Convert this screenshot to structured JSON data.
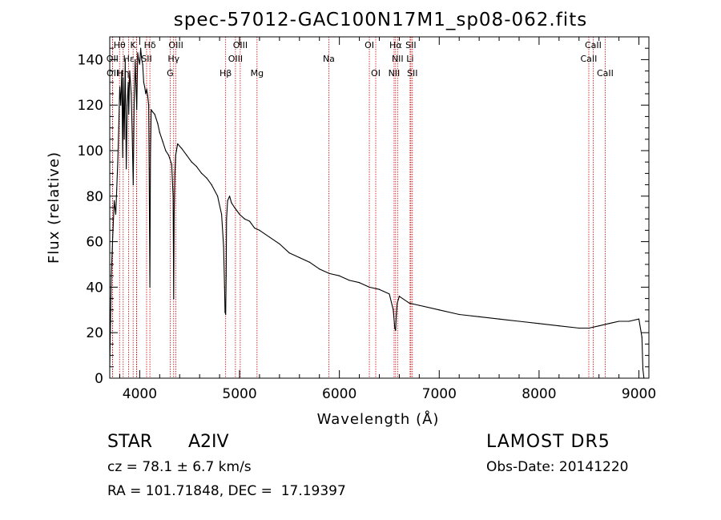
{
  "chart_data": {
    "type": "line",
    "title": "spec-57012-GAC100N17M1_sp08-062.fits",
    "xlabel": "Wavelength (Å)",
    "ylabel": "Flux (relative)",
    "xlim": [
      3700,
      9100
    ],
    "ylim": [
      0,
      150
    ],
    "xticks": [
      4000,
      5000,
      6000,
      7000,
      8000,
      9000
    ],
    "yticks": [
      0,
      20,
      40,
      60,
      80,
      100,
      120,
      140
    ],
    "grid": false,
    "series": [
      {
        "x": [
          3700,
          3715,
          3730,
          3745,
          3760,
          3770,
          3780,
          3790,
          3800,
          3810,
          3820,
          3830,
          3835,
          3845,
          3855,
          3865,
          3875,
          3885,
          3890,
          3900,
          3915,
          3925,
          3935,
          3945,
          3955,
          3960,
          3970,
          3980,
          3990,
          4000,
          4010,
          4020,
          4030,
          4040,
          4050,
          4060,
          4070,
          4080,
          4090,
          4095,
          4102,
          4108,
          4115,
          4130,
          4150,
          4180,
          4200,
          4230,
          4260,
          4290,
          4320,
          4335,
          4340,
          4345,
          4352,
          4360,
          4380,
          4420,
          4470,
          4520,
          4570,
          4620,
          4670,
          4720,
          4780,
          4820,
          4840,
          4850,
          4855,
          4861,
          4866,
          4870,
          4880,
          4900,
          4920,
          4950,
          5000,
          5050,
          5100,
          5150,
          5200,
          5300,
          5400,
          5500,
          5600,
          5700,
          5800,
          5900,
          6000,
          6100,
          6200,
          6300,
          6400,
          6500,
          6540,
          6555,
          6563,
          6570,
          6580,
          6600,
          6700,
          6800,
          7000,
          7200,
          7400,
          7600,
          7800,
          8000,
          8200,
          8400,
          8500,
          8600,
          8700,
          8800,
          8900,
          9000,
          9030,
          9040,
          9050
        ],
        "y": [
          5,
          45,
          62,
          78,
          72,
          83,
          95,
          110,
          128,
          120,
          135,
          97,
          132,
          105,
          140,
          92,
          120,
          130,
          116,
          135,
          125,
          108,
          85,
          122,
          140,
          132,
          118,
          143,
          140,
          138,
          145,
          140,
          138,
          130,
          128,
          125,
          127,
          124,
          120,
          92,
          40,
          98,
          118,
          117,
          116,
          112,
          108,
          104,
          100,
          98,
          94,
          80,
          35,
          72,
          90,
          98,
          103,
          101,
          98,
          95,
          93,
          90,
          88,
          85,
          80,
          72,
          58,
          40,
          29,
          28,
          45,
          70,
          78,
          80,
          77,
          75,
          72,
          70,
          69,
          66,
          65,
          62,
          59,
          55,
          53,
          51,
          48,
          46,
          45,
          43,
          42,
          40,
          39,
          37,
          30,
          22,
          21,
          28,
          33,
          36,
          33,
          32,
          30,
          28,
          27,
          26,
          25,
          24,
          23,
          22,
          22,
          23,
          24,
          25,
          25,
          26,
          18,
          4,
          0
        ],
        "color": "#000000"
      }
    ],
    "lines": [
      {
        "name": "Hθ",
        "wave": 3798
      },
      {
        "name": "OII",
        "wave": 3727
      },
      {
        "name": "OII",
        "wave": 3729
      },
      {
        "name": "Hη",
        "wave": 3835
      },
      {
        "name": "Hε",
        "wave": 3889
      },
      {
        "name": "Hε",
        "wave": 3970
      },
      {
        "name": "K",
        "wave": 3934
      },
      {
        "name": "H",
        "wave": 3968
      },
      {
        "name": "SII",
        "wave": 4069
      },
      {
        "name": "Hδ",
        "wave": 4102
      },
      {
        "name": "OIII",
        "wave": 4363
      },
      {
        "name": "Hγ",
        "wave": 4340
      },
      {
        "name": "G",
        "wave": 4305
      },
      {
        "name": "Hβ",
        "wave": 4861
      },
      {
        "name": "OIII",
        "wave": 4959
      },
      {
        "name": "OIII",
        "wave": 5007
      },
      {
        "name": "Mg",
        "wave": 5175
      },
      {
        "name": "Na",
        "wave": 5894
      },
      {
        "name": "OI",
        "wave": 6300
      },
      {
        "name": "OI",
        "wave": 6364
      },
      {
        "name": "Hα",
        "wave": 6563
      },
      {
        "name": "NII",
        "wave": 6548
      },
      {
        "name": "NII",
        "wave": 6583
      },
      {
        "name": "SII",
        "wave": 6716
      },
      {
        "name": "Li",
        "wave": 6708
      },
      {
        "name": "SII",
        "wave": 6731
      },
      {
        "name": "CaII",
        "wave": 8498
      },
      {
        "name": "CaII",
        "wave": 8542
      },
      {
        "name": "CaII",
        "wave": 8662
      }
    ],
    "line_labels": [
      {
        "text": "Hθ",
        "wave": 3798,
        "row": 0
      },
      {
        "text": "K",
        "wave": 3934,
        "row": 0
      },
      {
        "text": "Hδ",
        "wave": 4102,
        "row": 0
      },
      {
        "text": "OIII",
        "wave": 4363,
        "row": 0
      },
      {
        "text": "OIII",
        "wave": 5007,
        "row": 0
      },
      {
        "text": "OI",
        "wave": 6300,
        "row": 0
      },
      {
        "text": "Hα",
        "wave": 6563,
        "row": 0
      },
      {
        "text": "SII",
        "wave": 6716,
        "row": 0
      },
      {
        "text": "CaII",
        "wave": 8542,
        "row": 0
      },
      {
        "text": "OII",
        "wave": 3727,
        "row": 1
      },
      {
        "text": "Hε",
        "wave": 3890,
        "row": 1
      },
      {
        "text": "SII",
        "wave": 4069,
        "row": 1
      },
      {
        "text": "Hγ",
        "wave": 4340,
        "row": 1
      },
      {
        "text": "OIII",
        "wave": 4959,
        "row": 1
      },
      {
        "text": "Na",
        "wave": 5894,
        "row": 1
      },
      {
        "text": "NII",
        "wave": 6583,
        "row": 1
      },
      {
        "text": "Li",
        "wave": 6708,
        "row": 1
      },
      {
        "text": "CaII",
        "wave": 8498,
        "row": 1
      },
      {
        "text": "OII",
        "wave": 3729,
        "row": 2
      },
      {
        "text": "Hη",
        "wave": 3835,
        "row": 2
      },
      {
        "text": "G",
        "wave": 4305,
        "row": 2
      },
      {
        "text": "Hβ",
        "wave": 4861,
        "row": 2
      },
      {
        "text": "Mg",
        "wave": 5175,
        "row": 2
      },
      {
        "text": "OI",
        "wave": 6364,
        "row": 2
      },
      {
        "text": "NII",
        "wave": 6548,
        "row": 2
      },
      {
        "text": "SII",
        "wave": 6731,
        "row": 2
      },
      {
        "text": "CaII",
        "wave": 8662,
        "row": 2
      }
    ]
  },
  "info": {
    "object_class": "STAR",
    "subclass": "A2IV",
    "survey": "LAMOST DR5",
    "cz": "cz = 78.1 ± 6.7 km/s",
    "obs_date": "Obs-Date: 20141220",
    "coords": "RA = 101.71848, DEC =  17.19397"
  },
  "colors": {
    "line_marker": "#cc0000",
    "spectrum": "#000000",
    "axes": "#000000"
  }
}
